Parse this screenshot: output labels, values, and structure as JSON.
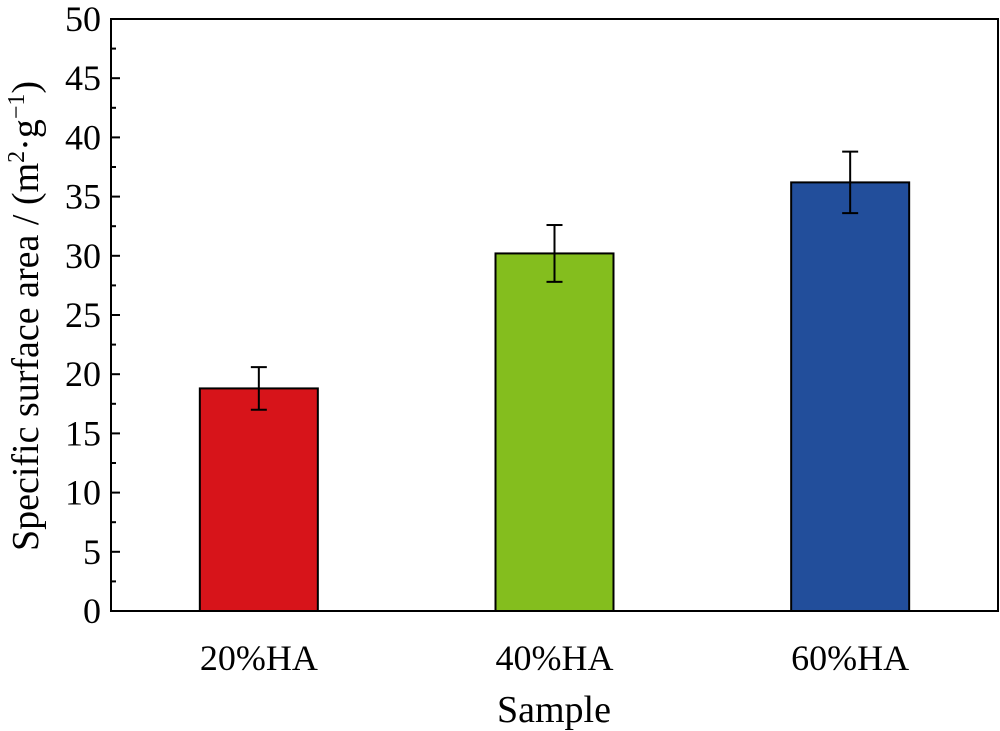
{
  "chart_data": {
    "type": "bar",
    "categories": [
      "20%HA",
      "40%HA",
      "60%HA"
    ],
    "values": [
      18.8,
      30.2,
      36.2
    ],
    "errors": [
      1.8,
      2.4,
      2.6
    ],
    "colors": [
      "#d7141a",
      "#84be1e",
      "#224e9b"
    ],
    "xlabel": "Sample",
    "ylabel_main": "Specific surface area / (m",
    "ylabel_sup1": "2",
    "ylabel_mid": "·g",
    "ylabel_sup2": "−1",
    "ylabel_end": ")",
    "ylim": [
      0,
      50
    ],
    "yticks": [
      0,
      5,
      10,
      15,
      20,
      25,
      30,
      35,
      40,
      45,
      50
    ],
    "grid": false,
    "legend": "none"
  }
}
